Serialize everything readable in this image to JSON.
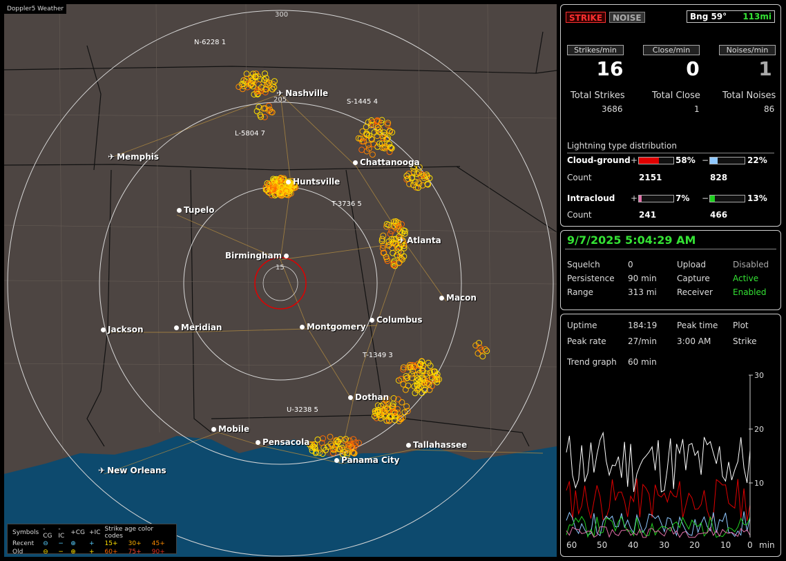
{
  "map": {
    "title": "Doppler5 Weather",
    "rings": [
      "300",
      "205",
      "15"
    ],
    "cities": [
      {
        "name": "Nashville",
        "icon": "airport-icon"
      },
      {
        "name": "Memphis",
        "icon": "airport-icon"
      },
      {
        "name": "Chattanooga",
        "icon": "city-dot-icon"
      },
      {
        "name": "Huntsville",
        "icon": "city-dot-icon"
      },
      {
        "name": "Tupelo",
        "icon": "city-dot-icon"
      },
      {
        "name": "Atlanta",
        "icon": "airport-icon"
      },
      {
        "name": "Birmingham",
        "icon": "city-dot-icon"
      },
      {
        "name": "Macon",
        "icon": "city-dot-icon"
      },
      {
        "name": "Jackson",
        "icon": "city-dot-icon"
      },
      {
        "name": "Meridian",
        "icon": "city-dot-icon"
      },
      {
        "name": "Montgomery",
        "icon": "city-dot-icon"
      },
      {
        "name": "Columbus",
        "icon": "city-dot-icon"
      },
      {
        "name": "Dothan",
        "icon": "city-dot-icon"
      },
      {
        "name": "Mobile",
        "icon": "city-dot-icon"
      },
      {
        "name": "Pensacola",
        "icon": "city-dot-icon"
      },
      {
        "name": "Tallahassee",
        "icon": "city-dot-icon"
      },
      {
        "name": "Panama City",
        "icon": "city-dot-icon"
      },
      {
        "name": "New Orleans",
        "icon": "airport-icon"
      }
    ],
    "callouts": [
      "N-6228 1",
      "S-1445 4",
      "L-5804 7",
      "T-3736 5",
      "T-1349 3",
      "U-3238 5"
    ],
    "legend": {
      "symbols_label": "Symbols",
      "types": [
        "-CG",
        "-IC",
        "+CG",
        "+IC"
      ],
      "age_title": "Strike age color codes",
      "recent_label": "Recent",
      "old_label": "Old",
      "recent_ages": [
        "15+",
        "30+",
        "45+"
      ],
      "old_ages": [
        "60+",
        "75+",
        "90+"
      ],
      "recent_glyphs": [
        "⊖",
        "−",
        "⊕",
        "+"
      ],
      "old_glyphs": [
        "⊖",
        "−",
        "⊕",
        "+"
      ]
    }
  },
  "top": {
    "strike_btn": "STRIKE",
    "noise_btn": "NOISE",
    "bearing": "Bng 59°",
    "distance": "113mi",
    "rate_headers": [
      "Strikes/min",
      "Close/min",
      "Noises/min"
    ],
    "rates": [
      "16",
      "0",
      "1"
    ],
    "total_labels": [
      "Total Strikes",
      "Total Close",
      "Total Noises"
    ],
    "totals": [
      "3686",
      "1",
      "86"
    ],
    "dist_title": "Lightning type distribution",
    "cg_label": "Cloud-ground",
    "ic_label": "Intracloud",
    "count_label": "Count",
    "plus": "+",
    "minus": "−",
    "cg_pos_pct": "58%",
    "cg_neg_pct": "22%",
    "ic_pos_pct": "7%",
    "ic_neg_pct": "13%",
    "cg_pos_frac": 0.58,
    "cg_neg_frac": 0.22,
    "ic_pos_frac": 0.07,
    "ic_neg_frac": 0.13,
    "cg_pos_count": "2151",
    "cg_neg_count": "828",
    "ic_pos_count": "241",
    "ic_neg_count": "466",
    "colors": {
      "cg_pos": "#e00000",
      "cg_neg": "#8fc8ff",
      "ic_pos": "#e070a8",
      "ic_neg": "#20d020"
    }
  },
  "status": {
    "datetime": "9/7/2025 5:04:29 AM",
    "rows": [
      {
        "k1": "Squelch",
        "v1": "0",
        "k2": "Upload",
        "v2": "Disabled"
      },
      {
        "k1": "Persistence",
        "v1": "90 min",
        "k2": "Capture",
        "v2": "Active"
      },
      {
        "k1": "Range",
        "v1": "313 mi",
        "k2": "Receiver",
        "v2": "Enabled"
      }
    ]
  },
  "trend": {
    "uptime_label": "Uptime",
    "uptime": "184:19",
    "peak_time_label": "Peak time",
    "plot_label": "Plot",
    "peak_rate_label": "Peak rate",
    "peak_rate": "27/min",
    "peak_time": "3:00 AM",
    "plot_value": "Strike",
    "graph_label": "Trend graph",
    "graph_span": "60 min",
    "y_ticks": [
      "30",
      "20",
      "10"
    ],
    "x_ticks": [
      "60",
      "50",
      "40",
      "30",
      "20",
      "10",
      "0"
    ],
    "x_unit": "min"
  }
}
